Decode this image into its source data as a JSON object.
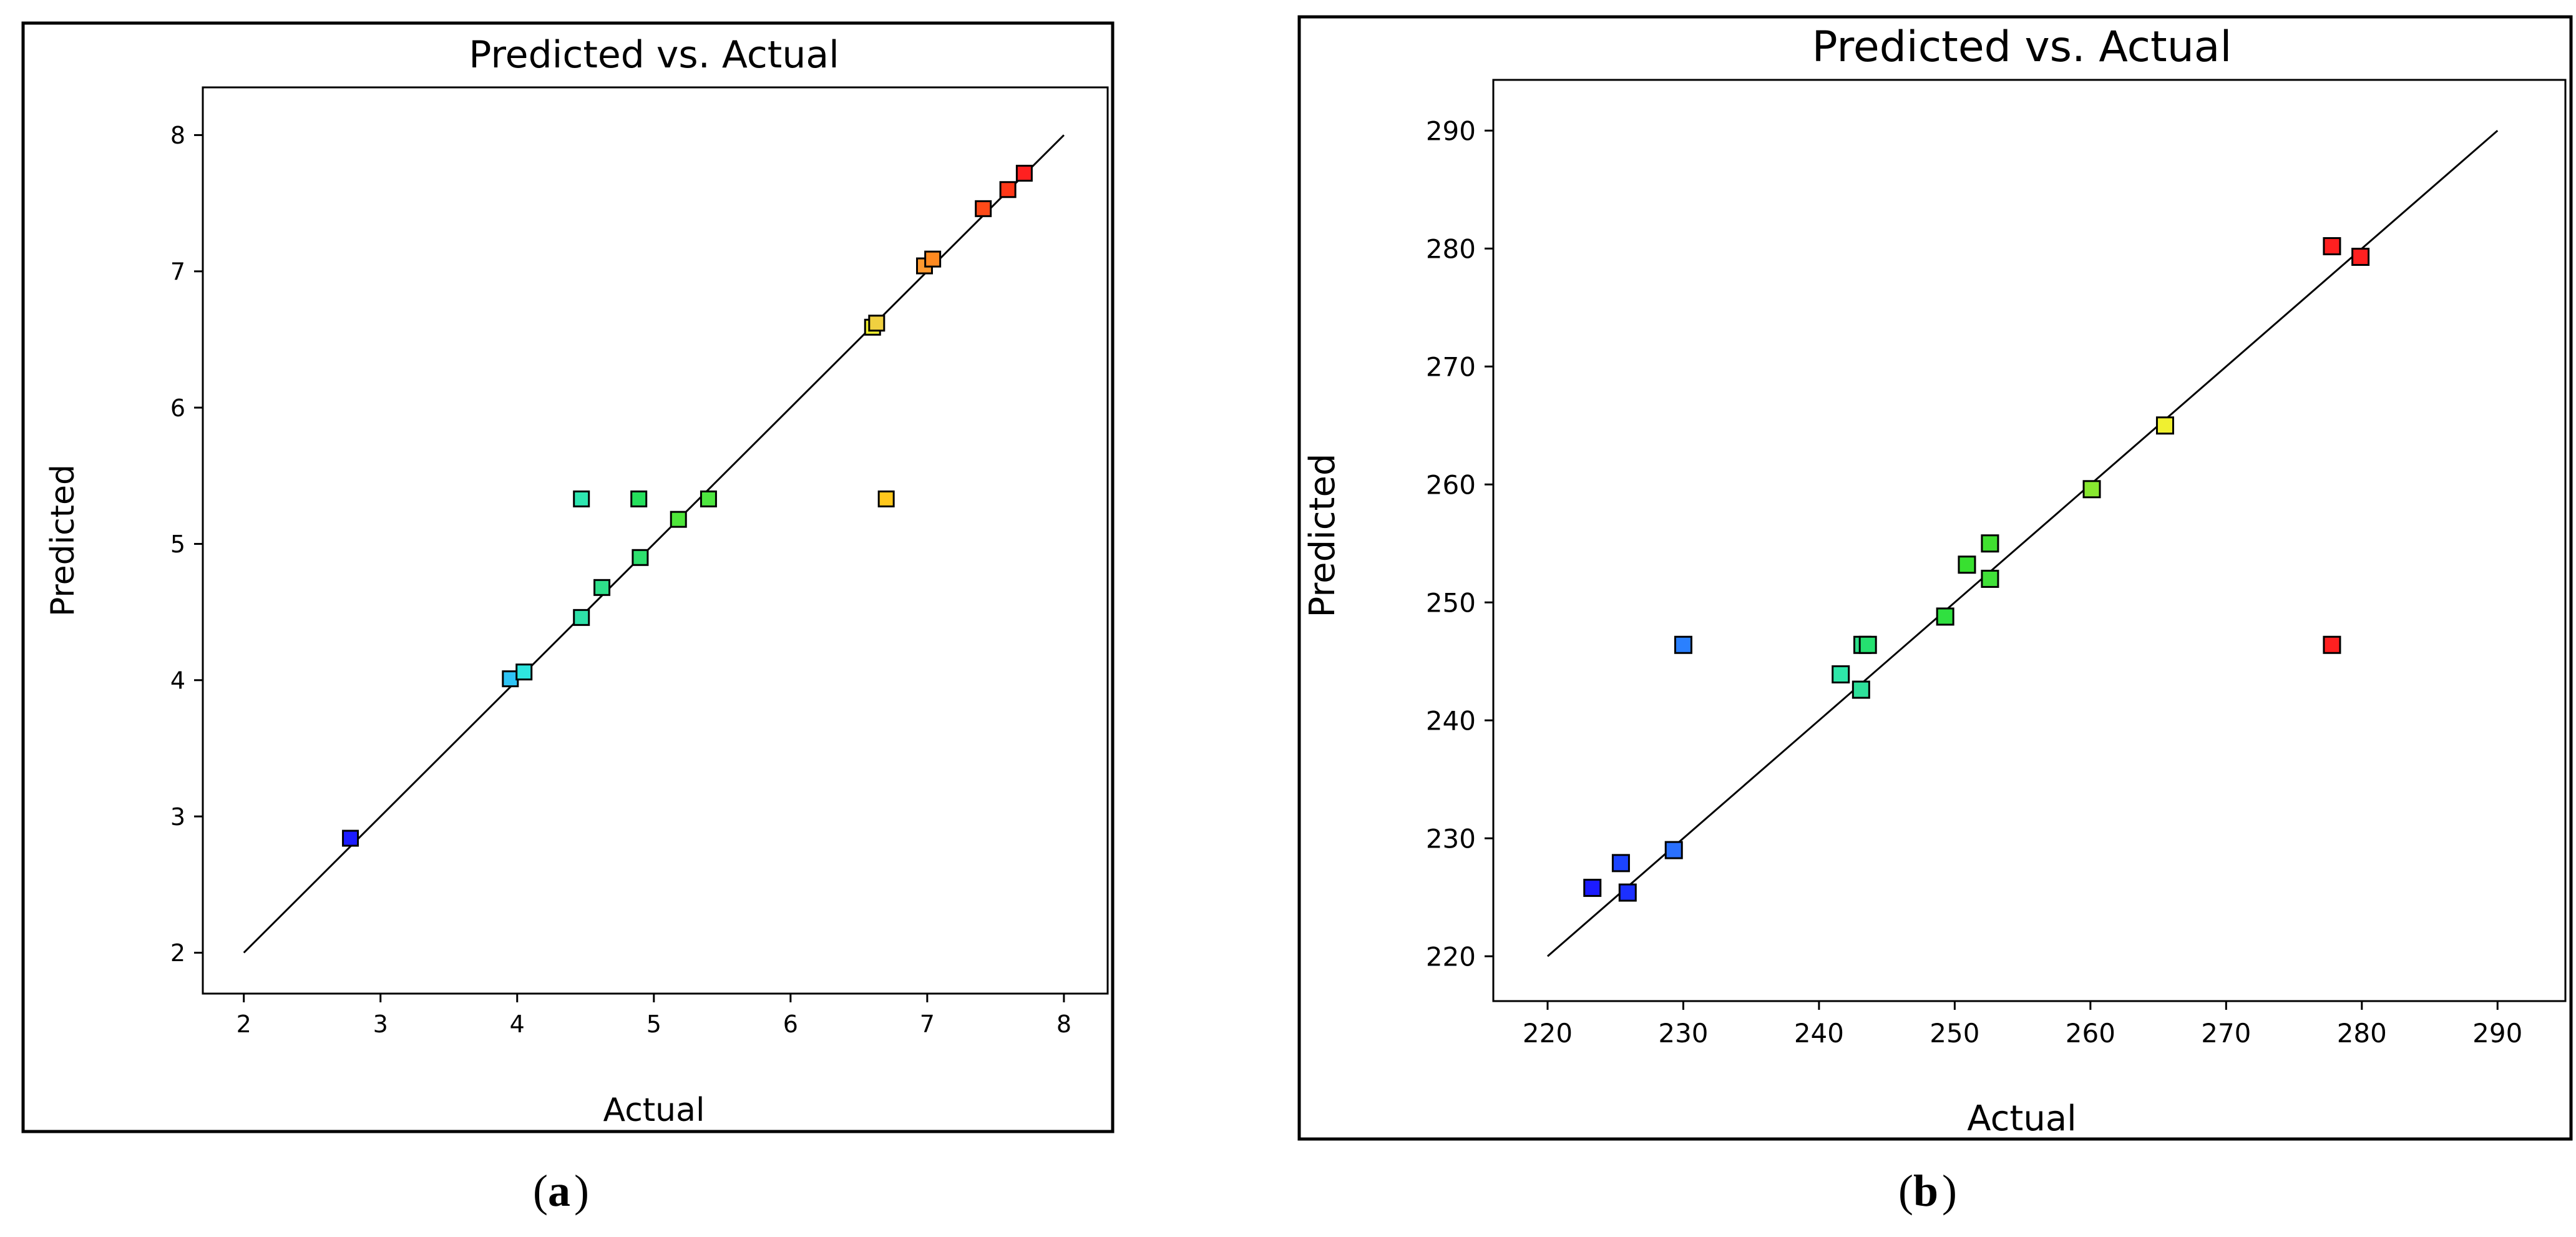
{
  "chart_data": [
    {
      "type": "scatter",
      "title": "Predicted vs. Actual",
      "xlabel": "Actual",
      "ylabel": "Predicted",
      "caption": "a",
      "xlim": [
        1.7,
        8.32
      ],
      "ylim": [
        1.7,
        8.35
      ],
      "xticks": [
        2,
        3,
        4,
        5,
        6,
        7,
        8
      ],
      "yticks": [
        2,
        3,
        4,
        5,
        6,
        7,
        8
      ],
      "diagonal": [
        2,
        8
      ],
      "points": [
        {
          "x": 2.78,
          "y": 2.84,
          "color": "#1c1cff"
        },
        {
          "x": 3.95,
          "y": 4.01,
          "color": "#2ec4f5"
        },
        {
          "x": 4.05,
          "y": 4.06,
          "color": "#2ee6e0"
        },
        {
          "x": 4.47,
          "y": 4.46,
          "color": "#2ee0a8"
        },
        {
          "x": 4.62,
          "y": 4.68,
          "color": "#2ee08a"
        },
        {
          "x": 4.47,
          "y": 5.33,
          "color": "#2ee6b0"
        },
        {
          "x": 4.89,
          "y": 5.33,
          "color": "#25e05c"
        },
        {
          "x": 4.9,
          "y": 4.9,
          "color": "#2ee06e"
        },
        {
          "x": 5.18,
          "y": 5.18,
          "color": "#4ee63a"
        },
        {
          "x": 5.4,
          "y": 5.33,
          "color": "#4ee640"
        },
        {
          "x": 6.6,
          "y": 6.59,
          "color": "#f0f030"
        },
        {
          "x": 6.63,
          "y": 6.62,
          "color": "#f0d040"
        },
        {
          "x": 6.7,
          "y": 5.33,
          "color": "#ffc81c"
        },
        {
          "x": 6.98,
          "y": 7.04,
          "color": "#ff9a30"
        },
        {
          "x": 7.04,
          "y": 7.09,
          "color": "#ff8a20"
        },
        {
          "x": 7.41,
          "y": 7.46,
          "color": "#ff4a18"
        },
        {
          "x": 7.59,
          "y": 7.6,
          "color": "#ff3818"
        },
        {
          "x": 7.71,
          "y": 7.72,
          "color": "#ff2020"
        }
      ]
    },
    {
      "type": "scatter",
      "title": "Predicted vs. Actual",
      "xlabel": "Actual",
      "ylabel": "Predicted",
      "caption": "b",
      "xlim": [
        216,
        295
      ],
      "ylim": [
        216.2,
        294.3
      ],
      "xticks": [
        220,
        230,
        240,
        250,
        260,
        270,
        280,
        290
      ],
      "yticks": [
        220,
        230,
        240,
        250,
        260,
        270,
        280,
        290
      ],
      "diagonal": [
        220,
        290
      ],
      "points": [
        {
          "x": 223.3,
          "y": 225.8,
          "color": "#1c1cff"
        },
        {
          "x": 225.4,
          "y": 227.9,
          "color": "#1c44ff"
        },
        {
          "x": 225.9,
          "y": 225.4,
          "color": "#1c30ff"
        },
        {
          "x": 229.3,
          "y": 229.0,
          "color": "#2a70ff"
        },
        {
          "x": 230.0,
          "y": 246.4,
          "color": "#2a80ff"
        },
        {
          "x": 241.6,
          "y": 243.9,
          "color": "#2ee6a8"
        },
        {
          "x": 243.1,
          "y": 242.6,
          "color": "#2ee09a"
        },
        {
          "x": 243.2,
          "y": 246.4,
          "color": "#2ee08a"
        },
        {
          "x": 243.6,
          "y": 246.4,
          "color": "#25e070"
        },
        {
          "x": 249.3,
          "y": 248.8,
          "color": "#30e040"
        },
        {
          "x": 250.9,
          "y": 253.2,
          "color": "#38e030"
        },
        {
          "x": 252.6,
          "y": 255.0,
          "color": "#40e030"
        },
        {
          "x": 252.6,
          "y": 252.0,
          "color": "#40e038"
        },
        {
          "x": 260.1,
          "y": 259.6,
          "color": "#88e830"
        },
        {
          "x": 265.5,
          "y": 265.0,
          "color": "#f0f030"
        },
        {
          "x": 277.8,
          "y": 280.2,
          "color": "#ff2020"
        },
        {
          "x": 279.9,
          "y": 279.3,
          "color": "#ff2020"
        },
        {
          "x": 277.8,
          "y": 246.4,
          "color": "#ff2020"
        }
      ]
    }
  ]
}
